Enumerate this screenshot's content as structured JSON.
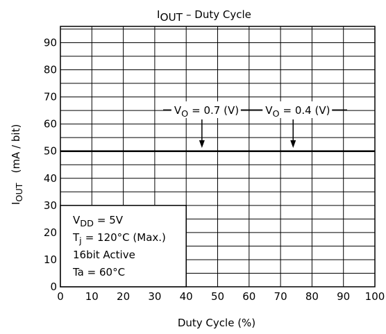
{
  "chart_data": {
    "type": "line",
    "title": {
      "main": "I",
      "sub": "OUT",
      "rest": "–  Duty Cycle"
    },
    "x_label": "Duty Cycle    (%)",
    "y_label": {
      "main": "I",
      "sub": "OUT",
      "rest": "(mA / bit)"
    },
    "xlim": [
      0,
      100
    ],
    "xticks": [
      0,
      10,
      20,
      30,
      40,
      50,
      60,
      70,
      80,
      90,
      100
    ],
    "ylim": [
      0,
      96
    ],
    "yticks": [
      0,
      10,
      20,
      30,
      40,
      50,
      60,
      70,
      80,
      90
    ],
    "minor_yticks": [
      5,
      15,
      25,
      35,
      45,
      55,
      65,
      75,
      85,
      95
    ],
    "grid": true,
    "series": [
      {
        "name": {
          "main": "V",
          "sub": "O",
          "rest": "= 0.7 (V)"
        },
        "color": "#000000",
        "x": [
          0,
          100
        ],
        "values": [
          50,
          50
        ]
      },
      {
        "name": {
          "main": "V",
          "sub": "O",
          "rest": "= 0.4 (V)"
        },
        "color": "#000000",
        "x": [
          0,
          100
        ],
        "values": [
          50,
          50
        ]
      }
    ],
    "annotation_x": [
      45,
      74
    ],
    "notes": [
      {
        "main": "V",
        "sub": "DD",
        "rest": "= 5V"
      },
      {
        "main": "T",
        "sub": "j",
        "rest": "= 120°C (Max.)"
      },
      {
        "main": "16bit  Active",
        "sub": "",
        "rest": ""
      },
      {
        "main": "Ta = 60°C",
        "sub": "",
        "rest": ""
      }
    ]
  }
}
